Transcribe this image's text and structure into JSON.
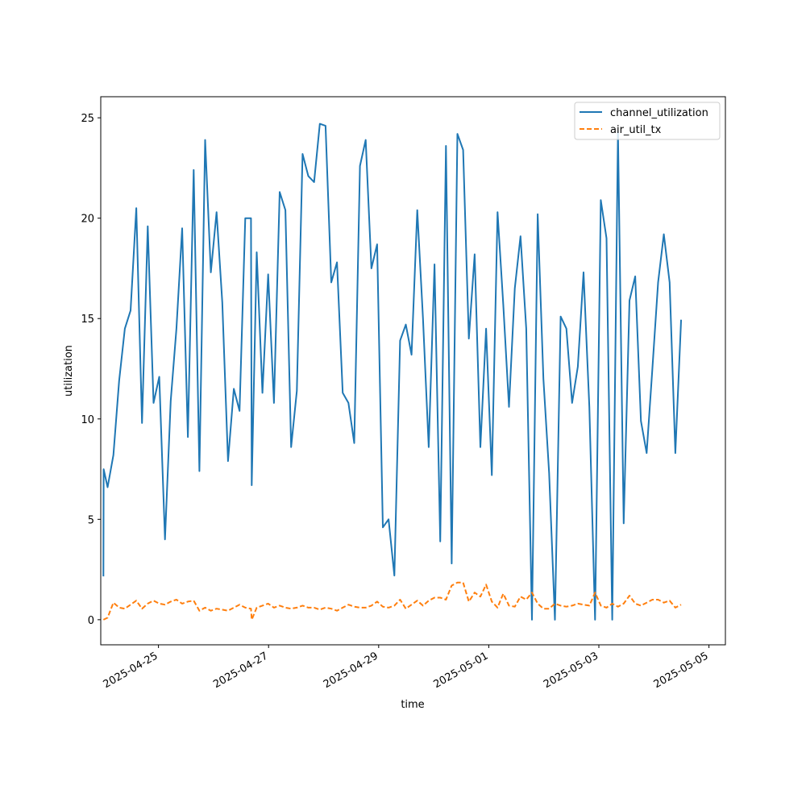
{
  "chart_data": {
    "type": "line",
    "xlabel": "time",
    "ylabel": "utilization",
    "x_range": [
      "2025-04-23T22:50",
      "2025-05-05T07:10"
    ],
    "ylim": [
      -1.25,
      26.05
    ],
    "x_ticks": [
      {
        "date": "2025-04-25",
        "label": "2025-04-25"
      },
      {
        "date": "2025-04-27",
        "label": "2025-04-27"
      },
      {
        "date": "2025-04-29",
        "label": "2025-04-29"
      },
      {
        "date": "2025-05-01",
        "label": "2025-05-01"
      },
      {
        "date": "2025-05-03",
        "label": "2025-05-03"
      },
      {
        "date": "2025-05-05",
        "label": "2025-05-05"
      }
    ],
    "y_ticks": [
      0,
      5,
      10,
      15,
      20,
      25
    ],
    "grid": false,
    "legend": "top-right",
    "colors": {
      "channel_utilization": "#1f77b4",
      "air_util_tx": "#ff7f0e"
    },
    "series": [
      {
        "name": "channel_utilization",
        "style": "solid",
        "points": [
          [
            "2025-04-24T00:00",
            2.2
          ],
          [
            "2025-04-24T00:05",
            7.5
          ],
          [
            "2025-04-24T01:50",
            6.6
          ],
          [
            "2025-04-24T04:20",
            8.2
          ],
          [
            "2025-04-24T06:50",
            11.9
          ],
          [
            "2025-04-24T09:20",
            14.5
          ],
          [
            "2025-04-24T11:50",
            15.4
          ],
          [
            "2025-04-24T14:20",
            20.5
          ],
          [
            "2025-04-24T16:50",
            9.8
          ],
          [
            "2025-04-24T19:20",
            19.6
          ],
          [
            "2025-04-24T21:50",
            10.8
          ],
          [
            "2025-04-25T00:20",
            12.1
          ],
          [
            "2025-04-25T02:50",
            4.0
          ],
          [
            "2025-04-25T05:20",
            10.9
          ],
          [
            "2025-04-25T07:50",
            14.5
          ],
          [
            "2025-04-25T10:20",
            19.5
          ],
          [
            "2025-04-25T12:50",
            9.1
          ],
          [
            "2025-04-25T15:20",
            22.4
          ],
          [
            "2025-04-25T17:50",
            7.4
          ],
          [
            "2025-04-25T20:20",
            23.9
          ],
          [
            "2025-04-25T22:50",
            17.3
          ],
          [
            "2025-04-26T01:20",
            20.3
          ],
          [
            "2025-04-26T03:50",
            15.8
          ],
          [
            "2025-04-26T06:20",
            7.9
          ],
          [
            "2025-04-26T08:50",
            11.5
          ],
          [
            "2025-04-26T11:20",
            10.4
          ],
          [
            "2025-04-26T13:50",
            20.0
          ],
          [
            "2025-04-26T16:20",
            20.0
          ],
          [
            "2025-04-26T16:40",
            6.7
          ],
          [
            "2025-04-26T18:50",
            18.3
          ],
          [
            "2025-04-26T21:20",
            11.3
          ],
          [
            "2025-04-26T23:50",
            17.2
          ],
          [
            "2025-04-27T02:20",
            10.8
          ],
          [
            "2025-04-27T04:50",
            21.3
          ],
          [
            "2025-04-27T07:20",
            20.4
          ],
          [
            "2025-04-27T09:50",
            8.6
          ],
          [
            "2025-04-27T12:20",
            11.4
          ],
          [
            "2025-04-27T14:50",
            23.2
          ],
          [
            "2025-04-27T17:20",
            22.1
          ],
          [
            "2025-04-27T19:50",
            21.8
          ],
          [
            "2025-04-27T22:20",
            24.7
          ],
          [
            "2025-04-28T00:50",
            24.6
          ],
          [
            "2025-04-28T03:20",
            16.8
          ],
          [
            "2025-04-28T05:50",
            17.8
          ],
          [
            "2025-04-28T08:20",
            11.3
          ],
          [
            "2025-04-28T10:50",
            10.8
          ],
          [
            "2025-04-28T13:20",
            8.8
          ],
          [
            "2025-04-28T15:50",
            22.6
          ],
          [
            "2025-04-28T18:20",
            23.9
          ],
          [
            "2025-04-28T20:50",
            17.5
          ],
          [
            "2025-04-28T23:20",
            18.7
          ],
          [
            "2025-04-29T01:50",
            4.6
          ],
          [
            "2025-04-29T04:20",
            5.0
          ],
          [
            "2025-04-29T06:50",
            2.2
          ],
          [
            "2025-04-29T09:20",
            13.9
          ],
          [
            "2025-04-29T11:50",
            14.7
          ],
          [
            "2025-04-29T14:20",
            13.2
          ],
          [
            "2025-04-29T16:50",
            20.4
          ],
          [
            "2025-04-29T19:20",
            15.0
          ],
          [
            "2025-04-29T21:50",
            8.6
          ],
          [
            "2025-04-30T00:20",
            17.7
          ],
          [
            "2025-04-30T02:50",
            3.9
          ],
          [
            "2025-04-30T05:20",
            23.6
          ],
          [
            "2025-04-30T07:50",
            2.8
          ],
          [
            "2025-04-30T10:20",
            24.2
          ],
          [
            "2025-04-30T12:50",
            23.4
          ],
          [
            "2025-04-30T15:20",
            14.0
          ],
          [
            "2025-04-30T17:50",
            18.2
          ],
          [
            "2025-04-30T20:20",
            8.6
          ],
          [
            "2025-04-30T22:50",
            14.5
          ],
          [
            "2025-05-01T01:20",
            7.2
          ],
          [
            "2025-05-01T03:50",
            20.3
          ],
          [
            "2025-05-01T06:20",
            15.7
          ],
          [
            "2025-05-01T08:50",
            10.6
          ],
          [
            "2025-05-01T11:20",
            16.5
          ],
          [
            "2025-05-01T13:50",
            19.1
          ],
          [
            "2025-05-01T16:20",
            14.5
          ],
          [
            "2025-05-01T18:50",
            0.0
          ],
          [
            "2025-05-01T21:20",
            20.2
          ],
          [
            "2025-05-01T23:50",
            12.0
          ],
          [
            "2025-05-02T02:20",
            7.3
          ],
          [
            "2025-05-02T04:50",
            0.0
          ],
          [
            "2025-05-02T07:20",
            15.1
          ],
          [
            "2025-05-02T09:50",
            14.5
          ],
          [
            "2025-05-02T12:20",
            10.8
          ],
          [
            "2025-05-02T14:50",
            12.6
          ],
          [
            "2025-05-02T17:20",
            17.3
          ],
          [
            "2025-05-02T19:50",
            10.6
          ],
          [
            "2025-05-02T22:20",
            0.0
          ],
          [
            "2025-05-03T00:50",
            20.9
          ],
          [
            "2025-05-03T03:20",
            19.0
          ],
          [
            "2025-05-03T05:50",
            0.0
          ],
          [
            "2025-05-03T08:20",
            24.3
          ],
          [
            "2025-05-03T10:50",
            4.8
          ],
          [
            "2025-05-03T13:20",
            15.9
          ],
          [
            "2025-05-03T15:50",
            17.1
          ],
          [
            "2025-05-03T18:20",
            9.9
          ],
          [
            "2025-05-03T20:50",
            8.3
          ],
          [
            "2025-05-03T23:20",
            12.5
          ],
          [
            "2025-05-04T01:50",
            16.8
          ],
          [
            "2025-05-04T04:20",
            19.2
          ],
          [
            "2025-05-04T06:50",
            16.8
          ],
          [
            "2025-05-04T09:20",
            8.3
          ],
          [
            "2025-05-04T11:50",
            14.9
          ]
        ]
      },
      {
        "name": "air_util_tx",
        "style": "dashed",
        "points": [
          [
            "2025-04-24T00:00",
            0.0
          ],
          [
            "2025-04-24T01:50",
            0.1
          ],
          [
            "2025-04-24T04:20",
            0.85
          ],
          [
            "2025-04-24T06:50",
            0.6
          ],
          [
            "2025-04-24T09:20",
            0.55
          ],
          [
            "2025-04-24T11:50",
            0.75
          ],
          [
            "2025-04-24T14:20",
            0.95
          ],
          [
            "2025-04-24T16:50",
            0.55
          ],
          [
            "2025-04-24T19:20",
            0.8
          ],
          [
            "2025-04-24T21:50",
            0.95
          ],
          [
            "2025-04-25T00:20",
            0.8
          ],
          [
            "2025-04-25T02:50",
            0.75
          ],
          [
            "2025-04-25T05:20",
            0.9
          ],
          [
            "2025-04-25T07:50",
            1.0
          ],
          [
            "2025-04-25T10:20",
            0.8
          ],
          [
            "2025-04-25T12:50",
            0.9
          ],
          [
            "2025-04-25T15:20",
            0.95
          ],
          [
            "2025-04-25T17:50",
            0.45
          ],
          [
            "2025-04-25T20:20",
            0.6
          ],
          [
            "2025-04-25T22:50",
            0.45
          ],
          [
            "2025-04-26T01:20",
            0.55
          ],
          [
            "2025-04-26T03:50",
            0.5
          ],
          [
            "2025-04-26T06:20",
            0.45
          ],
          [
            "2025-04-26T08:50",
            0.6
          ],
          [
            "2025-04-26T11:20",
            0.75
          ],
          [
            "2025-04-26T13:50",
            0.6
          ],
          [
            "2025-04-26T16:20",
            0.55
          ],
          [
            "2025-04-26T16:40",
            0.0
          ],
          [
            "2025-04-26T18:50",
            0.6
          ],
          [
            "2025-04-26T21:20",
            0.7
          ],
          [
            "2025-04-26T23:50",
            0.8
          ],
          [
            "2025-04-27T02:20",
            0.6
          ],
          [
            "2025-04-27T04:50",
            0.7
          ],
          [
            "2025-04-27T07:20",
            0.6
          ],
          [
            "2025-04-27T09:50",
            0.55
          ],
          [
            "2025-04-27T12:20",
            0.6
          ],
          [
            "2025-04-27T14:50",
            0.7
          ],
          [
            "2025-04-27T17:20",
            0.6
          ],
          [
            "2025-04-27T19:50",
            0.6
          ],
          [
            "2025-04-27T22:20",
            0.5
          ],
          [
            "2025-04-28T00:50",
            0.6
          ],
          [
            "2025-04-28T03:20",
            0.55
          ],
          [
            "2025-04-28T05:50",
            0.45
          ],
          [
            "2025-04-28T08:20",
            0.6
          ],
          [
            "2025-04-28T10:50",
            0.75
          ],
          [
            "2025-04-28T13:20",
            0.65
          ],
          [
            "2025-04-28T15:50",
            0.6
          ],
          [
            "2025-04-28T18:20",
            0.6
          ],
          [
            "2025-04-28T20:50",
            0.7
          ],
          [
            "2025-04-28T23:20",
            0.9
          ],
          [
            "2025-04-29T01:50",
            0.65
          ],
          [
            "2025-04-29T04:20",
            0.6
          ],
          [
            "2025-04-29T06:50",
            0.7
          ],
          [
            "2025-04-29T09:20",
            1.0
          ],
          [
            "2025-04-29T11:50",
            0.55
          ],
          [
            "2025-04-29T14:20",
            0.75
          ],
          [
            "2025-04-29T16:50",
            0.95
          ],
          [
            "2025-04-29T19:20",
            0.7
          ],
          [
            "2025-04-29T21:50",
            0.95
          ],
          [
            "2025-04-30T00:20",
            1.1
          ],
          [
            "2025-04-30T02:50",
            1.1
          ],
          [
            "2025-04-30T05:20",
            1.0
          ],
          [
            "2025-04-30T07:50",
            1.7
          ],
          [
            "2025-04-30T10:20",
            1.85
          ],
          [
            "2025-04-30T12:50",
            1.85
          ],
          [
            "2025-04-30T15:20",
            0.9
          ],
          [
            "2025-04-30T17:50",
            1.35
          ],
          [
            "2025-04-30T20:20",
            1.15
          ],
          [
            "2025-04-30T22:50",
            1.75
          ],
          [
            "2025-05-01T01:20",
            0.9
          ],
          [
            "2025-05-01T03:50",
            0.6
          ],
          [
            "2025-05-01T06:20",
            1.3
          ],
          [
            "2025-05-01T08:50",
            0.7
          ],
          [
            "2025-05-01T11:20",
            0.65
          ],
          [
            "2025-05-01T13:50",
            1.15
          ],
          [
            "2025-05-01T16:20",
            1.0
          ],
          [
            "2025-05-01T18:50",
            1.35
          ],
          [
            "2025-05-01T21:20",
            0.8
          ],
          [
            "2025-05-01T23:50",
            0.55
          ],
          [
            "2025-05-02T02:20",
            0.55
          ],
          [
            "2025-05-02T04:50",
            0.8
          ],
          [
            "2025-05-02T07:20",
            0.7
          ],
          [
            "2025-05-02T09:50",
            0.65
          ],
          [
            "2025-05-02T12:20",
            0.7
          ],
          [
            "2025-05-02T14:50",
            0.8
          ],
          [
            "2025-05-02T17:20",
            0.75
          ],
          [
            "2025-05-02T19:50",
            0.7
          ],
          [
            "2025-05-02T22:20",
            1.35
          ],
          [
            "2025-05-03T00:50",
            0.7
          ],
          [
            "2025-05-03T03:20",
            0.6
          ],
          [
            "2025-05-03T05:50",
            0.8
          ],
          [
            "2025-05-03T08:20",
            0.65
          ],
          [
            "2025-05-03T10:50",
            0.8
          ],
          [
            "2025-05-03T13:20",
            1.2
          ],
          [
            "2025-05-03T15:50",
            0.8
          ],
          [
            "2025-05-03T18:20",
            0.7
          ],
          [
            "2025-05-03T20:50",
            0.85
          ],
          [
            "2025-05-03T23:20",
            1.0
          ],
          [
            "2025-05-04T01:50",
            1.0
          ],
          [
            "2025-05-04T04:20",
            0.85
          ],
          [
            "2025-05-04T06:50",
            0.95
          ],
          [
            "2025-05-04T09:20",
            0.6
          ],
          [
            "2025-05-04T11:50",
            0.75
          ]
        ]
      }
    ]
  }
}
